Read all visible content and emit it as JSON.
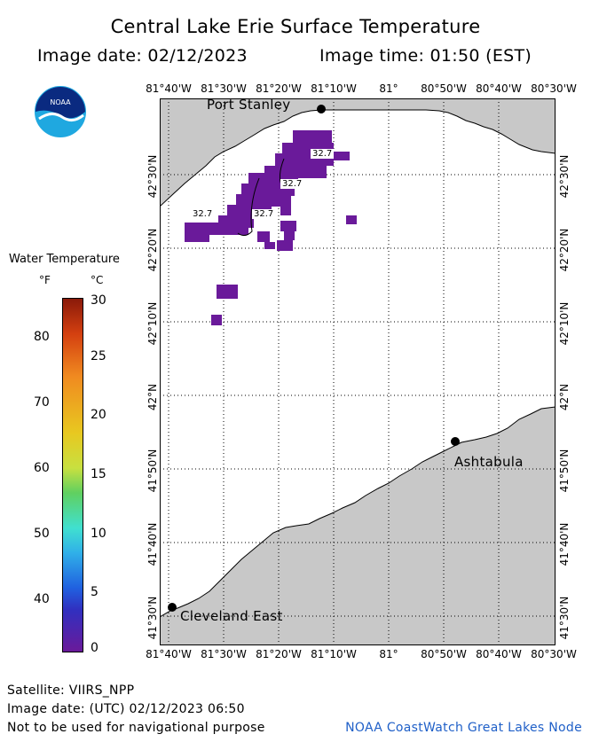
{
  "title": "Central Lake Erie Surface Temperature",
  "image_date": "Image date: 02/12/2023",
  "image_time": "Image time: 01:50 (EST)",
  "longitudes": [
    "81°40'W",
    "81°30'W",
    "81°20'W",
    "81°10'W",
    "81°",
    "80°50'W",
    "80°40'W",
    "80°30'W"
  ],
  "latitudes": [
    "42°30'N",
    "42°20'N",
    "42°10'N",
    "42°N",
    "41°50'N",
    "41°40'N",
    "41°30'N"
  ],
  "cities": {
    "port_stanley": "Port Stanley",
    "ashtabula": "Ashtabula",
    "cleveland_east": "Cleveland East"
  },
  "temp_labels": [
    "32.7",
    "32.7",
    "32.7",
    "32.7"
  ],
  "legend": {
    "title": "Water Temperature",
    "unit_f": "°F",
    "unit_c": "°C",
    "fahrenheit_ticks": [
      "80",
      "70",
      "60",
      "50",
      "40"
    ],
    "celsius_ticks": [
      "30",
      "25",
      "20",
      "15",
      "10",
      "5",
      "0"
    ]
  },
  "footer": {
    "satellite": "Satellite: VIIRS_NPP",
    "utc_date": "Image date: (UTC) 02/12/2023  06:50",
    "warning": "Not to be used for navigational purpose",
    "credit": "NOAA CoastWatch Great Lakes Node"
  },
  "colors": {
    "land": "#c8c8c8",
    "water_cold": "#6a1a9a",
    "credit": "#2060c8"
  }
}
